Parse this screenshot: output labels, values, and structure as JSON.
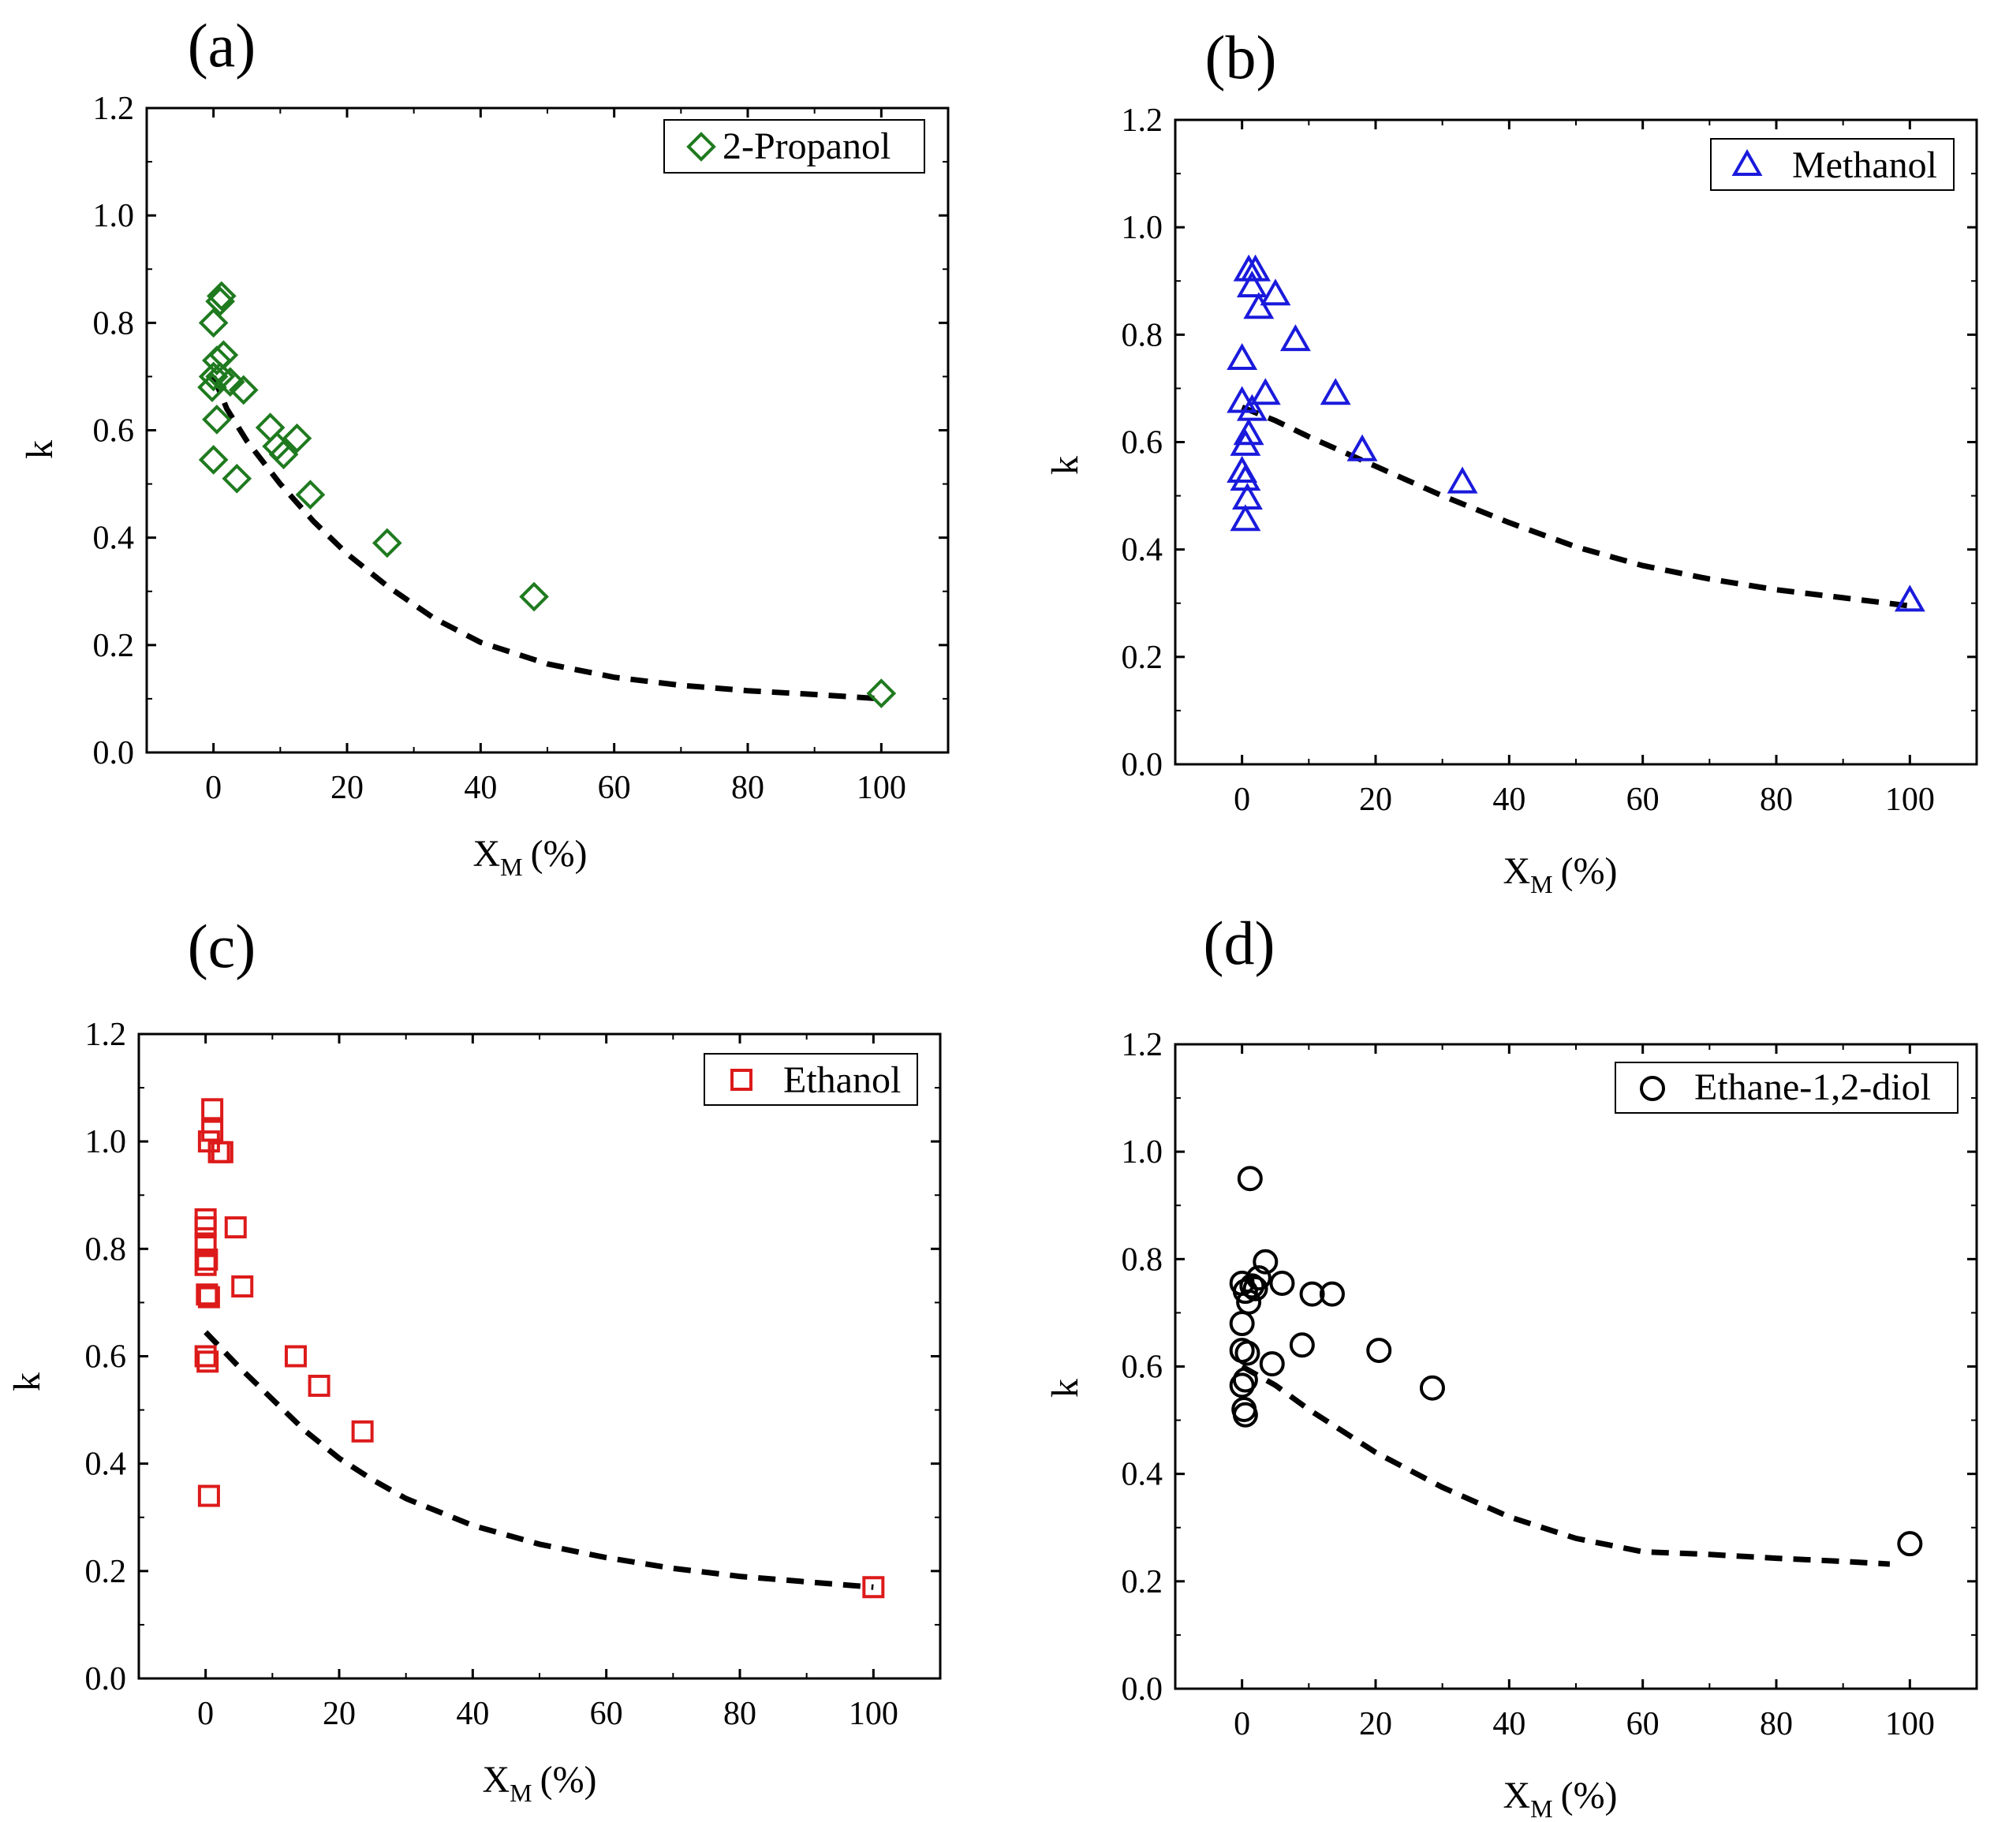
{
  "chart_data": [
    {
      "type": "scatter",
      "panel_label": "(a)",
      "series": [
        {
          "name": "2-Propanol",
          "marker": "diamond",
          "color": "#1f7a1f",
          "points": [
            [
              0,
              0.8
            ],
            [
              1,
              0.84
            ],
            [
              1.2,
              0.85
            ],
            [
              0.5,
              0.73
            ],
            [
              1.5,
              0.74
            ],
            [
              0,
              0.7
            ],
            [
              -0.2,
              0.68
            ],
            [
              1,
              0.7
            ],
            [
              2.5,
              0.69
            ],
            [
              4.5,
              0.675
            ],
            [
              0.5,
              0.62
            ],
            [
              0,
              0.545
            ],
            [
              3.5,
              0.51
            ],
            [
              8.5,
              0.605
            ],
            [
              9.5,
              0.57
            ],
            [
              10.5,
              0.555
            ],
            [
              12.5,
              0.585
            ],
            [
              14.5,
              0.48
            ],
            [
              26,
              0.39
            ],
            [
              48,
              0.29
            ],
            [
              100,
              0.11
            ]
          ]
        }
      ],
      "fit": [
        [
          0,
          0.7
        ],
        [
          2,
          0.64
        ],
        [
          5,
          0.58
        ],
        [
          10,
          0.5
        ],
        [
          15,
          0.43
        ],
        [
          20,
          0.37
        ],
        [
          26,
          0.31
        ],
        [
          33,
          0.25
        ],
        [
          40,
          0.205
        ],
        [
          50,
          0.165
        ],
        [
          60,
          0.14
        ],
        [
          70,
          0.125
        ],
        [
          80,
          0.115
        ],
        [
          90,
          0.108
        ],
        [
          100,
          0.1
        ]
      ],
      "xlabel": "X",
      "xlabel_sub": "M",
      "xlabel_unit": "(%)",
      "ylabel": "k",
      "xlim": [
        -10,
        110
      ],
      "ylim": [
        0,
        1.2
      ],
      "xticks": [
        "0",
        "20",
        "40",
        "60",
        "80",
        "100"
      ],
      "yticks": [
        "0.0",
        "0.2",
        "0.4",
        "0.6",
        "0.8",
        "1.0",
        "1.2"
      ],
      "legend_position": "top-right"
    },
    {
      "type": "scatter",
      "panel_label": "(b)",
      "series": [
        {
          "name": "Methanol",
          "marker": "triangle",
          "color": "#1a1adc",
          "points": [
            [
              1,
              0.92
            ],
            [
              2,
              0.92
            ],
            [
              1.5,
              0.89
            ],
            [
              5,
              0.875
            ],
            [
              2.5,
              0.85
            ],
            [
              8,
              0.79
            ],
            [
              0,
              0.755
            ],
            [
              3.5,
              0.69
            ],
            [
              14,
              0.69
            ],
            [
              0,
              0.675
            ],
            [
              1.5,
              0.66
            ],
            [
              1,
              0.615
            ],
            [
              0.5,
              0.595
            ],
            [
              18,
              0.585
            ],
            [
              0,
              0.545
            ],
            [
              0.5,
              0.53
            ],
            [
              33,
              0.525
            ],
            [
              0.8,
              0.495
            ],
            [
              0.5,
              0.455
            ],
            [
              100,
              0.305
            ]
          ]
        }
      ],
      "fit": [
        [
          0,
          0.665
        ],
        [
          5,
          0.64
        ],
        [
          10,
          0.61
        ],
        [
          20,
          0.555
        ],
        [
          30,
          0.5
        ],
        [
          40,
          0.45
        ],
        [
          50,
          0.405
        ],
        [
          60,
          0.37
        ],
        [
          70,
          0.345
        ],
        [
          80,
          0.325
        ],
        [
          90,
          0.31
        ],
        [
          100,
          0.295
        ]
      ],
      "xlabel": "X",
      "xlabel_sub": "M",
      "xlabel_unit": "(%)",
      "ylabel": "k",
      "xlim": [
        -10,
        110
      ],
      "ylim": [
        0,
        1.2
      ],
      "xticks": [
        "0",
        "20",
        "40",
        "60",
        "80",
        "100"
      ],
      "yticks": [
        "0.0",
        "0.2",
        "0.4",
        "0.6",
        "0.8",
        "1.0",
        "1.2"
      ],
      "legend_position": "top-right"
    },
    {
      "type": "scatter",
      "panel_label": "(c)",
      "series": [
        {
          "name": "Ethanol",
          "marker": "square",
          "color": "#dd1a1a",
          "points": [
            [
              1,
              1.06
            ],
            [
              1,
              1.02
            ],
            [
              0.5,
              1.0
            ],
            [
              2,
              0.98
            ],
            [
              2.5,
              0.98
            ],
            [
              0,
              0.855
            ],
            [
              0,
              0.84
            ],
            [
              0,
              0.81
            ],
            [
              4.5,
              0.84
            ],
            [
              0.2,
              0.78
            ],
            [
              0,
              0.77
            ],
            [
              5.5,
              0.73
            ],
            [
              0.2,
              0.715
            ],
            [
              0.5,
              0.71
            ],
            [
              13.5,
              0.6
            ],
            [
              0,
              0.6
            ],
            [
              0.3,
              0.59
            ],
            [
              17,
              0.545
            ],
            [
              23.5,
              0.46
            ],
            [
              0.5,
              0.34
            ],
            [
              100,
              0.17
            ]
          ]
        }
      ],
      "fit": [
        [
          0,
          0.645
        ],
        [
          5,
          0.58
        ],
        [
          10,
          0.52
        ],
        [
          15,
          0.46
        ],
        [
          20,
          0.41
        ],
        [
          25,
          0.37
        ],
        [
          30,
          0.335
        ],
        [
          40,
          0.285
        ],
        [
          50,
          0.25
        ],
        [
          60,
          0.225
        ],
        [
          70,
          0.205
        ],
        [
          80,
          0.19
        ],
        [
          90,
          0.18
        ],
        [
          100,
          0.17
        ]
      ],
      "xlabel": "X",
      "xlabel_sub": "M",
      "xlabel_unit": "(%)",
      "ylabel": "k",
      "xlim": [
        -10,
        110
      ],
      "ylim": [
        0,
        1.2
      ],
      "xticks": [
        "0",
        "20",
        "40",
        "60",
        "80",
        "100"
      ],
      "yticks": [
        "0.0",
        "0.2",
        "0.4",
        "0.6",
        "0.8",
        "1.0",
        "1.2"
      ],
      "legend_position": "top-right"
    },
    {
      "type": "scatter",
      "panel_label": "(d)",
      "series": [
        {
          "name": "Ethane-1,2-diol",
          "marker": "circle",
          "color": "#000000",
          "points": [
            [
              1.2,
              0.95
            ],
            [
              3.5,
              0.795
            ],
            [
              2.5,
              0.765
            ],
            [
              6,
              0.755
            ],
            [
              0,
              0.755
            ],
            [
              1.5,
              0.75
            ],
            [
              0.5,
              0.74
            ],
            [
              2,
              0.745
            ],
            [
              1,
              0.72
            ],
            [
              10.5,
              0.735
            ],
            [
              13.5,
              0.735
            ],
            [
              0,
              0.68
            ],
            [
              9,
              0.64
            ],
            [
              20.5,
              0.63
            ],
            [
              0,
              0.63
            ],
            [
              0.8,
              0.625
            ],
            [
              4.5,
              0.605
            ],
            [
              0.5,
              0.575
            ],
            [
              28.5,
              0.56
            ],
            [
              0,
              0.565
            ],
            [
              0.3,
              0.52
            ],
            [
              0.5,
              0.51
            ],
            [
              100,
              0.27
            ]
          ]
        }
      ],
      "fit": [
        [
          0,
          0.6
        ],
        [
          5,
          0.565
        ],
        [
          10,
          0.52
        ],
        [
          20,
          0.44
        ],
        [
          30,
          0.375
        ],
        [
          40,
          0.32
        ],
        [
          50,
          0.28
        ],
        [
          60,
          0.255
        ],
        [
          70,
          0.25
        ],
        [
          80,
          0.243
        ],
        [
          90,
          0.237
        ],
        [
          97,
          0.232
        ]
      ],
      "xlabel": "X",
      "xlabel_sub": "M",
      "xlabel_unit": "(%)",
      "ylabel": "k",
      "xlim": [
        -10,
        110
      ],
      "ylim": [
        0,
        1.2
      ],
      "xticks": [
        "0",
        "20",
        "40",
        "60",
        "80",
        "100"
      ],
      "yticks": [
        "0.0",
        "0.2",
        "0.4",
        "0.6",
        "0.8",
        "1.0",
        "1.2"
      ],
      "legend_position": "top-right"
    }
  ]
}
